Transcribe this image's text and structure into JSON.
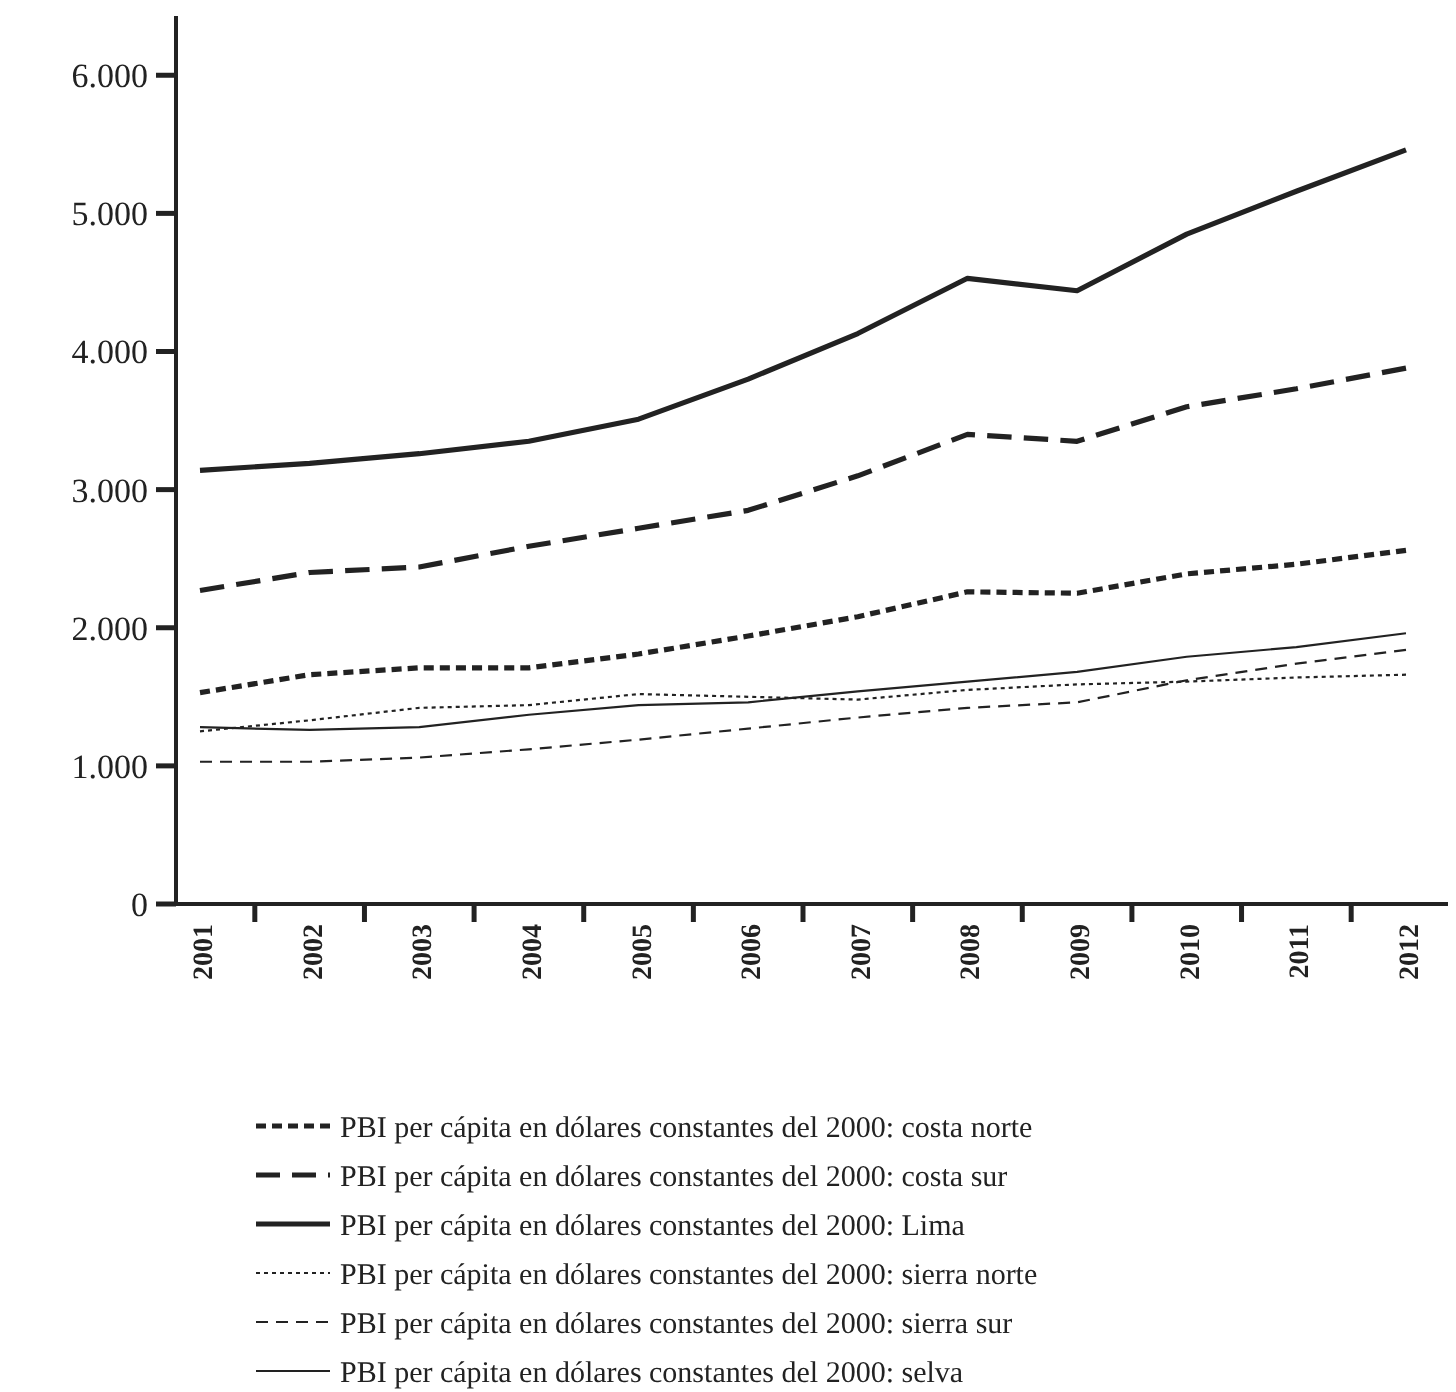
{
  "chart_data": {
    "type": "line",
    "categories": [
      "2001",
      "2002",
      "2003",
      "2004",
      "2005",
      "2006",
      "2007",
      "2008",
      "2009",
      "2010",
      "2011",
      "2012"
    ],
    "ylim": [
      0,
      6400
    ],
    "yticks": [
      {
        "value": 0,
        "label": "0"
      },
      {
        "value": 1000,
        "label": "1.000"
      },
      {
        "value": 2000,
        "label": "2.000"
      },
      {
        "value": 3000,
        "label": "3.000"
      },
      {
        "value": 4000,
        "label": "4.000"
      },
      {
        "value": 5000,
        "label": "5.000"
      },
      {
        "value": 6000,
        "label": "6.000"
      }
    ],
    "grid": false,
    "legend": "bottom",
    "marker": "none",
    "series": [
      {
        "name": "PBI per cápita en dólares constantes del 2000: costa norte",
        "color": "#222222",
        "line_style": "dotted",
        "values": [
          1530,
          1660,
          1710,
          1710,
          1810,
          1940,
          2080,
          2260,
          2250,
          2390,
          2460,
          2560
        ]
      },
      {
        "name": "PBI per cápita en dólares constantes del 2000: costa sur",
        "color": "#222222",
        "line_style": "dashed",
        "values": [
          2270,
          2400,
          2440,
          2590,
          2720,
          2850,
          3100,
          3400,
          3350,
          3600,
          3730,
          3880
        ]
      },
      {
        "name": "PBI per cápita en dólares constantes del 2000: Lima",
        "color": "#222222",
        "line_style": "solid",
        "values": [
          3140,
          3190,
          3260,
          3350,
          3510,
          3800,
          4130,
          4530,
          4440,
          4850,
          5160,
          5460
        ]
      },
      {
        "name": "PBI per cápita en dólares constantes del 2000: sierra norte",
        "color": "#222222",
        "line_style": "dotted",
        "values": [
          1250,
          1330,
          1420,
          1440,
          1520,
          1500,
          1480,
          1550,
          1590,
          1610,
          1640,
          1660
        ]
      },
      {
        "name": "PBI per cápita en dólares constantes del 2000: sierra sur",
        "color": "#222222",
        "line_style": "dashed",
        "values": [
          1030,
          1030,
          1060,
          1120,
          1190,
          1270,
          1350,
          1420,
          1460,
          1620,
          1740,
          1840
        ]
      },
      {
        "name": "PBI per cápita en dólares constantes del 2000: selva",
        "color": "#222222",
        "line_style": "solid",
        "values": [
          1280,
          1260,
          1280,
          1370,
          1440,
          1460,
          1540,
          1610,
          1680,
          1790,
          1860,
          1960
        ]
      }
    ]
  }
}
